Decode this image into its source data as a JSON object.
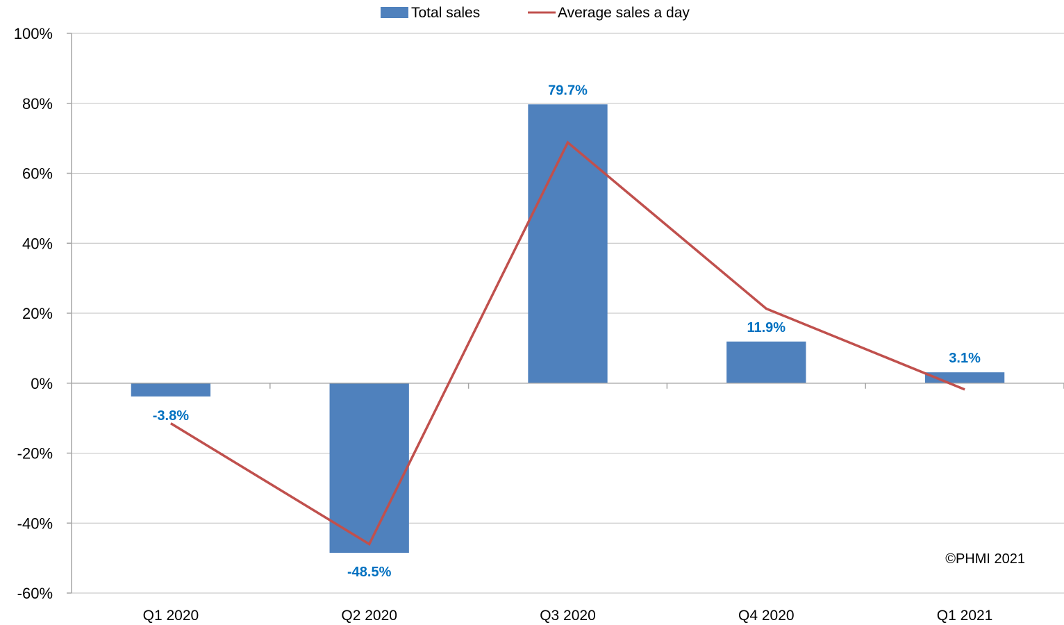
{
  "chart_data": {
    "type": "bar",
    "categories": [
      "Q1 2020",
      "Q2 2020",
      "Q3 2020",
      "Q4 2020",
      "Q1 2021"
    ],
    "series": [
      {
        "name": "Total sales",
        "type": "bar",
        "values": [
          -3.8,
          -48.5,
          79.7,
          11.9,
          3.1
        ]
      },
      {
        "name": "Average sales a day",
        "type": "line",
        "values": [
          -11.5,
          -46.0,
          68.8,
          21.3,
          -1.8
        ]
      }
    ],
    "data_labels": [
      "-3.8%",
      "-48.5%",
      "79.7%",
      "11.9%",
      "3.1%"
    ],
    "yticks": [
      "100%",
      "80%",
      "60%",
      "40%",
      "20%",
      "0%",
      "-20%",
      "-40%",
      "-60%"
    ],
    "ylim": [
      -60,
      100
    ],
    "ytick_step": 20,
    "grid": true,
    "legend_position": "top-center",
    "annotation": "©PHMI 2021",
    "colors": {
      "bar": "#4F81BD",
      "line": "#C0504D",
      "label": "#0070C0",
      "grid": "#BFBFBF",
      "axis": "#A6A6A6"
    }
  }
}
